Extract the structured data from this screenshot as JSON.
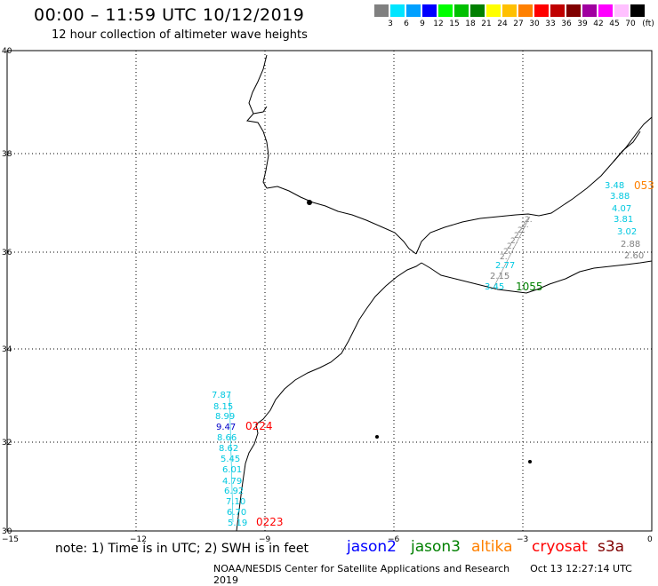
{
  "header": {
    "title": "00:00 – 11:59 UTC 10/12/2019",
    "subtitle": "12 hour collection of altimeter wave heights"
  },
  "scale": {
    "unit": "(ft)",
    "bins": [
      {
        "label": "3",
        "color": "#808080"
      },
      {
        "label": "6",
        "color": "#00e5ff"
      },
      {
        "label": "9",
        "color": "#00a0ff"
      },
      {
        "label": "12",
        "color": "#0000ff"
      },
      {
        "label": "15",
        "color": "#00ff00"
      },
      {
        "label": "18",
        "color": "#00c000"
      },
      {
        "label": "21",
        "color": "#008000"
      },
      {
        "label": "24",
        "color": "#ffff00"
      },
      {
        "label": "27",
        "color": "#ffc000"
      },
      {
        "label": "30",
        "color": "#ff8000"
      },
      {
        "label": "33",
        "color": "#ff0000"
      },
      {
        "label": "36",
        "color": "#c00000"
      },
      {
        "label": "39",
        "color": "#800000"
      },
      {
        "label": "42",
        "color": "#a000a0"
      },
      {
        "label": "45",
        "color": "#ff00ff"
      },
      {
        "label": "70",
        "color": "#ffc0ff"
      },
      {
        "label": "",
        "color": "#000000"
      }
    ]
  },
  "axes": {
    "lat_labels": [
      "40",
      "38",
      "36",
      "34",
      "32",
      "30"
    ],
    "lon_labels": [
      "−15",
      "−12",
      "−9",
      "−6",
      "−3",
      "0"
    ]
  },
  "tracks": [
    {
      "mission": "cryosat",
      "time_label": "0224",
      "time_color": "#ff0000",
      "values": [
        {
          "v": "7.87",
          "c": "#00c8e0"
        },
        {
          "v": "8.15",
          "c": "#00c8e0"
        },
        {
          "v": "8.99",
          "c": "#00c8e0"
        },
        {
          "v": "9.47",
          "c": "#0000c8"
        },
        {
          "v": "8.66",
          "c": "#00c8e0"
        },
        {
          "v": "8.62",
          "c": "#00c8e0"
        },
        {
          "v": "5.45",
          "c": "#00c8e0"
        },
        {
          "v": "6.01",
          "c": "#00c8e0"
        },
        {
          "v": "4.79",
          "c": "#00c8e0"
        },
        {
          "v": "6.92",
          "c": "#00c8e0"
        },
        {
          "v": "7.10",
          "c": "#00c8e0"
        },
        {
          "v": "6.70",
          "c": "#00c8e0"
        },
        {
          "v": "5.19",
          "c": "#00c8e0"
        }
      ]
    },
    {
      "mission": "cryosat",
      "time_label": "0223",
      "time_color": "#ff0000",
      "values": []
    },
    {
      "mission": "jason3",
      "time_label": "1055",
      "time_color": "#008000",
      "values": [
        {
          "v": "3.45",
          "c": "#00c8e0"
        },
        {
          "v": "2.15",
          "c": "#808080"
        },
        {
          "v": "2.77",
          "c": "#00c8e0"
        }
      ]
    },
    {
      "mission": "altika",
      "time_label": "053",
      "time_color": "#ff8000",
      "values": [
        {
          "v": "3.48",
          "c": "#00c8e0"
        },
        {
          "v": "3.88",
          "c": "#00c8e0"
        },
        {
          "v": "4.07",
          "c": "#00c8e0"
        },
        {
          "v": "3.81",
          "c": "#00c8e0"
        },
        {
          "v": "3.02",
          "c": "#00c8e0"
        },
        {
          "v": "2.88",
          "c": "#808080"
        },
        {
          "v": "2.60",
          "c": "#808080"
        }
      ]
    }
  ],
  "footer": {
    "note": "note: 1) Time is in UTC; 2) SWH is in feet",
    "missions": [
      {
        "name": "jason2",
        "color": "#0000ff"
      },
      {
        "name": "jason3",
        "color": "#008000"
      },
      {
        "name": "altika",
        "color": "#ff8000"
      },
      {
        "name": "cryosat",
        "color": "#ff0000"
      },
      {
        "name": "s3a",
        "color": "#800000"
      }
    ],
    "credit": "NOAA/NESDIS Center for Satellite Applications and Research",
    "timestamp": "Oct 13 12:27:14 UTC 2019"
  }
}
